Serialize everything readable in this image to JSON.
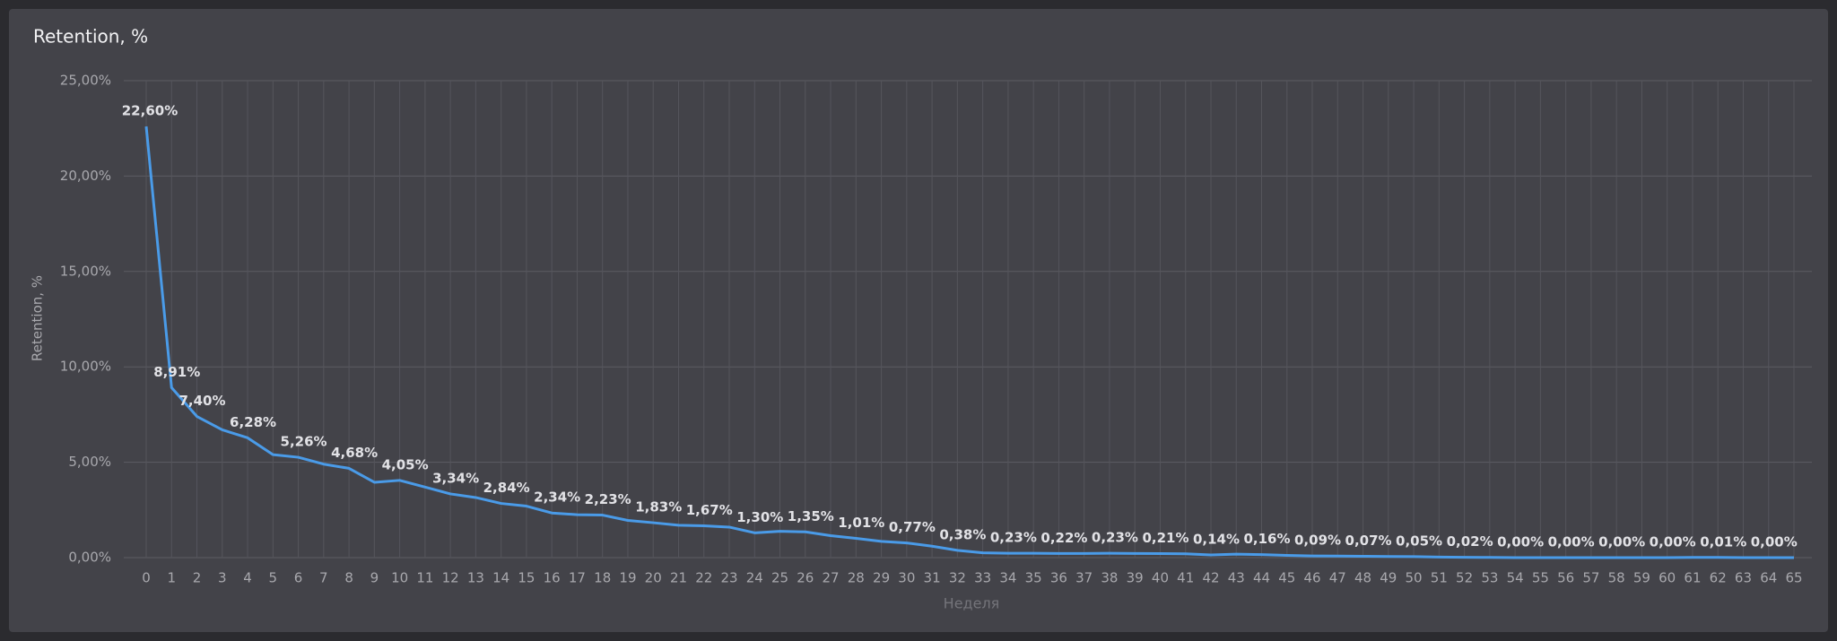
{
  "chart_data": {
    "type": "line",
    "title": "Retention, %",
    "x_label": "Неделя",
    "y_label": "Retention, %",
    "categories": [
      0,
      1,
      2,
      3,
      4,
      5,
      6,
      7,
      8,
      9,
      10,
      11,
      12,
      13,
      14,
      15,
      16,
      17,
      18,
      19,
      20,
      21,
      22,
      23,
      24,
      25,
      26,
      27,
      28,
      29,
      30,
      31,
      32,
      33,
      34,
      35,
      36,
      37,
      38,
      39,
      40,
      41,
      42,
      43,
      44,
      45,
      46,
      47,
      48,
      49,
      50,
      51,
      52,
      53,
      54,
      55,
      56,
      57,
      58,
      59,
      60,
      61,
      62,
      63,
      64,
      65
    ],
    "series": [
      {
        "name": "Retention, %",
        "color": "#4a9be8",
        "values": [
          22.6,
          8.91,
          7.4,
          6.7,
          6.28,
          5.4,
          5.26,
          4.9,
          4.68,
          3.95,
          4.05,
          3.7,
          3.34,
          3.15,
          2.84,
          2.7,
          2.34,
          2.25,
          2.23,
          1.95,
          1.83,
          1.7,
          1.67,
          1.6,
          1.3,
          1.38,
          1.35,
          1.15,
          1.01,
          0.85,
          0.77,
          0.6,
          0.38,
          0.25,
          0.23,
          0.23,
          0.22,
          0.22,
          0.23,
          0.22,
          0.21,
          0.2,
          0.14,
          0.18,
          0.16,
          0.12,
          0.09,
          0.08,
          0.07,
          0.06,
          0.05,
          0.03,
          0.02,
          0.01,
          0,
          0,
          0,
          0,
          0,
          0,
          0,
          0.01,
          0.01,
          0,
          0,
          0
        ],
        "value_labels": [
          "22,60%",
          "8,91%",
          "7,40%",
          null,
          "6,28%",
          null,
          "5,26%",
          null,
          "4,68%",
          null,
          "4,05%",
          null,
          "3,34%",
          null,
          "2,84%",
          null,
          "2,34%",
          null,
          "2,23%",
          null,
          "1,83%",
          null,
          "1,67%",
          null,
          "1,30%",
          null,
          "1,35%",
          null,
          "1,01%",
          null,
          "0,77%",
          null,
          "0,38%",
          null,
          "0,23%",
          null,
          "0,22%",
          null,
          "0,23%",
          null,
          "0,21%",
          null,
          "0,14%",
          null,
          "0,16%",
          null,
          "0,09%",
          null,
          "0,07%",
          null,
          "0,05%",
          null,
          "0,02%",
          null,
          "0,00%",
          null,
          "0,00%",
          null,
          "0,00%",
          null,
          "0,00%",
          null,
          "0,01%",
          null,
          "0,00%",
          null
        ]
      }
    ],
    "ylim": [
      0,
      25
    ],
    "yticks": [
      {
        "value": 0,
        "label": "0,00%"
      },
      {
        "value": 5,
        "label": "5,00%"
      },
      {
        "value": 10,
        "label": "10,00%"
      },
      {
        "value": 15,
        "label": "15,00%"
      },
      {
        "value": 20,
        "label": "20,00%"
      },
      {
        "value": 25,
        "label": "25,00%"
      }
    ],
    "grid": true
  }
}
